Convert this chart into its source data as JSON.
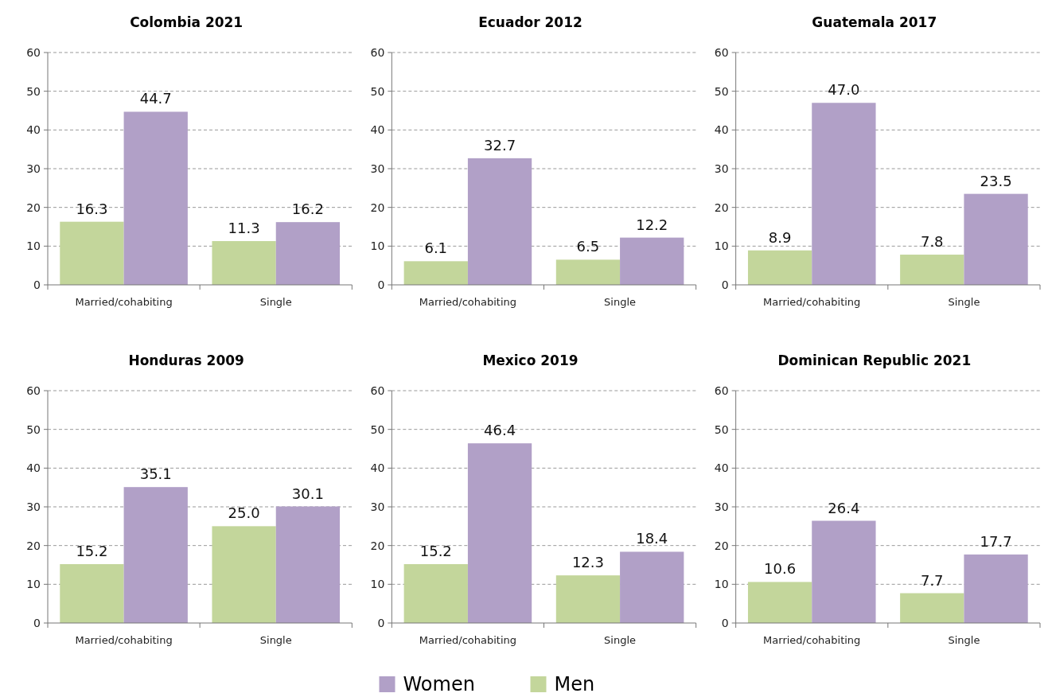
{
  "chart_data": [
    {
      "type": "bar",
      "title": "Colombia 2021",
      "categories": [
        "Married/cohabiting",
        "Single"
      ],
      "series": [
        {
          "name": "Men",
          "color": "#c3d69b",
          "values": [
            16.3,
            11.3
          ],
          "value_labels": [
            "16.3",
            "11.3"
          ]
        },
        {
          "name": "Women",
          "color": "#b1a0c7",
          "values": [
            44.7,
            16.2
          ],
          "value_labels": [
            "44.7",
            "16.2"
          ]
        }
      ],
      "ylim": [
        0,
        60
      ],
      "yticks": [
        0,
        10,
        20,
        30,
        40,
        50,
        60
      ],
      "grid": "y",
      "legend": "bottom"
    },
    {
      "type": "bar",
      "title": "Ecuador 2012",
      "categories": [
        "Married/cohabiting",
        "Single"
      ],
      "series": [
        {
          "color": "#c3d69b",
          "values": [
            6.1,
            6.5
          ],
          "value_labels": [
            "6.1",
            "6.5"
          ]
        },
        {
          "color": "#b1a0c7",
          "values": [
            32.7,
            12.2
          ],
          "value_labels": [
            "32.7",
            "12.2"
          ]
        }
      ],
      "ylim": [
        0,
        60
      ],
      "yticks": [
        0,
        10,
        20,
        30,
        40,
        50,
        60
      ],
      "grid": "y"
    },
    {
      "type": "bar",
      "title": "Guatemala 2017",
      "categories": [
        "Married/cohabiting",
        "Single"
      ],
      "series": [
        {
          "color": "#c3d69b",
          "values": [
            8.9,
            7.8
          ],
          "value_labels": [
            "8.9",
            "7.8"
          ]
        },
        {
          "color": "#b1a0c7",
          "values": [
            47.0,
            23.5
          ],
          "value_labels": [
            "47.0",
            "23.5"
          ]
        }
      ],
      "ylim": [
        0,
        60
      ],
      "yticks": [
        0,
        10,
        20,
        30,
        40,
        50,
        60
      ],
      "grid": "y"
    },
    {
      "type": "bar",
      "title": "Honduras 2009",
      "categories": [
        "Married/cohabiting",
        "Single"
      ],
      "series": [
        {
          "color": "#c3d69b",
          "values": [
            15.2,
            25.0
          ],
          "value_labels": [
            "15.2",
            "25.0"
          ]
        },
        {
          "color": "#b1a0c7",
          "values": [
            35.1,
            30.1
          ],
          "value_labels": [
            "35.1",
            "30.1"
          ]
        }
      ],
      "ylim": [
        0,
        60
      ],
      "yticks": [
        0,
        10,
        20,
        30,
        40,
        50,
        60
      ],
      "grid": "y"
    },
    {
      "type": "bar",
      "title": "Mexico 2019",
      "categories": [
        "Married/cohabiting",
        "Single"
      ],
      "series": [
        {
          "color": "#c3d69b",
          "values": [
            15.2,
            12.3
          ],
          "value_labels": [
            "15.2",
            "12.3"
          ]
        },
        {
          "color": "#b1a0c7",
          "values": [
            46.4,
            18.4
          ],
          "value_labels": [
            "46.4",
            "18.4"
          ]
        }
      ],
      "ylim": [
        0,
        60
      ],
      "yticks": [
        0,
        10,
        20,
        30,
        40,
        50,
        60
      ],
      "grid": "y"
    },
    {
      "type": "bar",
      "title": "Dominican Republic 2021",
      "categories": [
        "Married/cohabiting",
        "Single"
      ],
      "series": [
        {
          "color": "#c3d69b",
          "values": [
            10.6,
            7.7
          ],
          "value_labels": [
            "10.6",
            "7.7"
          ]
        },
        {
          "color": "#b1a0c7",
          "values": [
            26.4,
            17.7
          ],
          "value_labels": [
            "26.4",
            "17.7"
          ]
        }
      ],
      "ylim": [
        0,
        60
      ],
      "yticks": [
        0,
        10,
        20,
        30,
        40,
        50,
        60
      ],
      "grid": "y"
    }
  ]
}
